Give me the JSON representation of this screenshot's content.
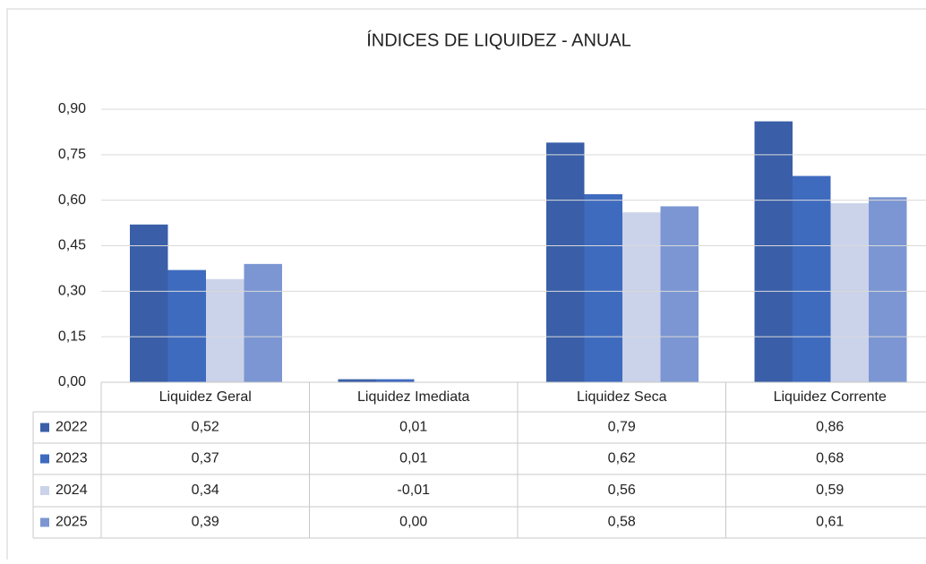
{
  "chart_data": {
    "type": "bar",
    "title": "ÍNDICES DE LIQUIDEZ - ANUAL",
    "categories": [
      "Liquidez Geral",
      "Liquidez Imediata",
      "Liquidez Seca",
      "Liquidez Corrente"
    ],
    "series": [
      {
        "name": "2022",
        "color": "#3a5fa8",
        "values": [
          0.52,
          0.01,
          0.79,
          0.86
        ],
        "value_labels": [
          "0,52",
          "0,01",
          "0,79",
          "0,86"
        ]
      },
      {
        "name": "2023",
        "color": "#3f6bbf",
        "values": [
          0.37,
          0.01,
          0.62,
          0.68
        ],
        "value_labels": [
          "0,37",
          "0,01",
          "0,62",
          "0,68"
        ]
      },
      {
        "name": "2024",
        "color": "#cbd3ea",
        "values": [
          0.34,
          -0.01,
          0.56,
          0.59
        ],
        "value_labels": [
          "0,34",
          "-0,01",
          "0,56",
          "0,59"
        ]
      },
      {
        "name": "2025",
        "color": "#7b96d2",
        "values": [
          0.39,
          0.0,
          0.58,
          0.61
        ],
        "value_labels": [
          "0,39",
          "0,00",
          "0,58",
          "0,61"
        ]
      }
    ],
    "ylim": [
      0,
      0.9
    ],
    "yticks": [
      {
        "value": 0,
        "label": "0,00"
      },
      {
        "value": 0.15,
        "label": "0,15"
      },
      {
        "value": 0.3,
        "label": "0,30"
      },
      {
        "value": 0.45,
        "label": "0,45"
      },
      {
        "value": 0.6,
        "label": "0,60"
      },
      {
        "value": 0.75,
        "label": "0,75"
      },
      {
        "value": 0.9,
        "label": "0,90"
      }
    ],
    "grid": true
  }
}
